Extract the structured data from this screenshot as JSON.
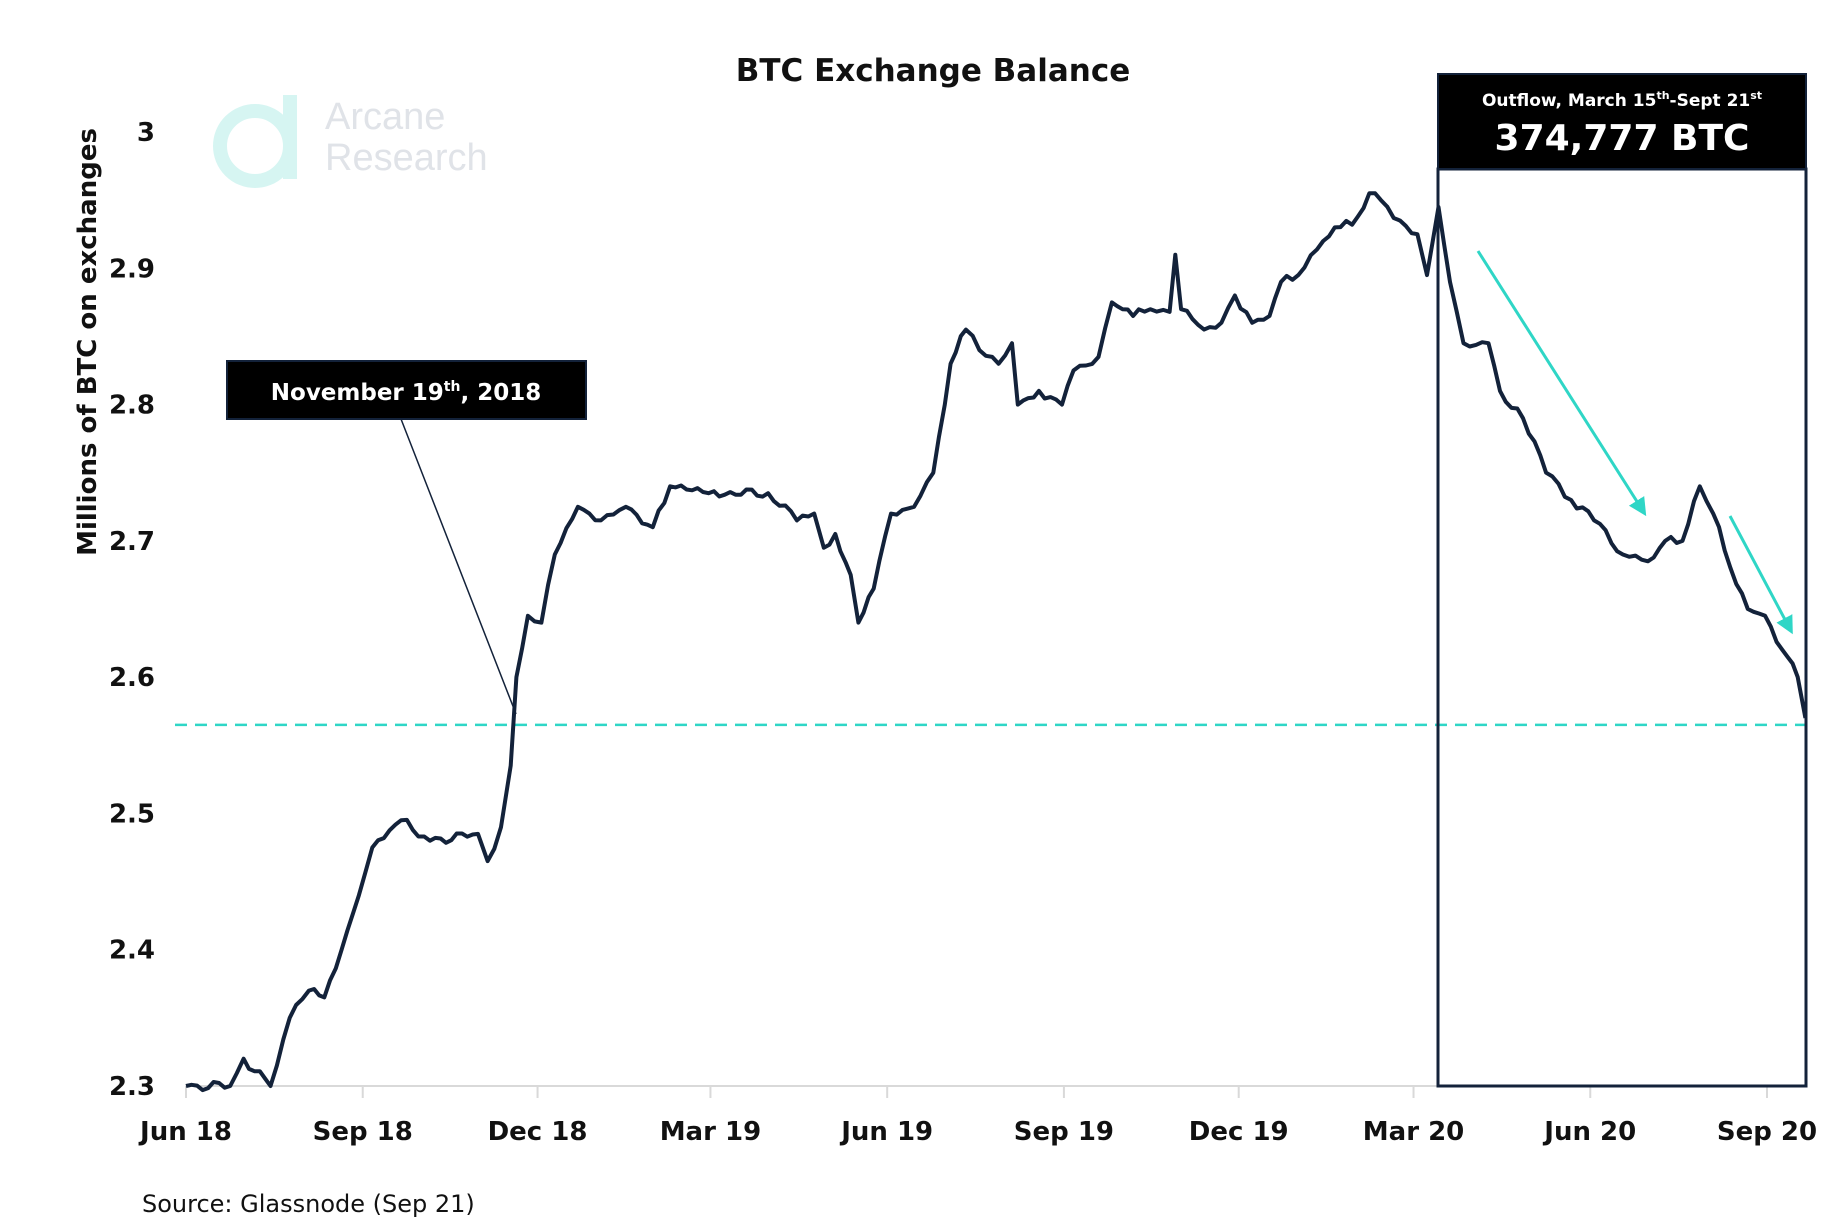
{
  "logo": {
    "text_line1": "Arcane",
    "text_line2": "Research"
  },
  "source": "Source: Glassnode (Sep 21)",
  "annotations": {
    "november": {
      "label": "November 19",
      "sup": "th",
      "suffix": ", 2018",
      "date": "2018-11-19",
      "level": 2.565
    },
    "outflow": {
      "line1_a": "Outflow, March 15",
      "line1_sup1": "th",
      "line1_b": "-Sept 21",
      "line1_sup2": "st",
      "value": "374,777 BTC",
      "start": "2020-03-14",
      "end": "2020-09-21"
    }
  },
  "colors": {
    "line": "#13223a",
    "accent": "#2fd6c6",
    "box": "#000000",
    "axis": "#d9d9d9"
  },
  "chart_data": {
    "type": "line",
    "title": "BTC Exchange Balance",
    "xlabel": "",
    "ylabel": "Millions of BTC on exchanges",
    "ylim": [
      2.3,
      3.0
    ],
    "xlim": [
      "2018-06-01",
      "2020-09-21"
    ],
    "grid": false,
    "yticks": [
      "2.3",
      "2.4",
      "2.5",
      "2.6",
      "2.7",
      "2.8",
      "2.9",
      "3"
    ],
    "xticks": [
      {
        "label": "Jun 18",
        "date": "2018-06-01"
      },
      {
        "label": "Sep 18",
        "date": "2018-09-01"
      },
      {
        "label": "Dec 18",
        "date": "2018-12-01"
      },
      {
        "label": "Mar 19",
        "date": "2019-03-01"
      },
      {
        "label": "Jun 19",
        "date": "2019-06-01"
      },
      {
        "label": "Sep 19",
        "date": "2019-09-01"
      },
      {
        "label": "Dec 19",
        "date": "2019-12-01"
      },
      {
        "label": "Mar 20",
        "date": "2020-03-01"
      },
      {
        "label": "Jun 20",
        "date": "2020-06-01"
      },
      {
        "label": "Sep 20",
        "date": "2020-09-01"
      }
    ],
    "series": [
      {
        "points": [
          [
            "2018-06-01",
            2.3
          ],
          [
            "2018-06-24",
            2.3
          ],
          [
            "2018-07-01",
            2.32
          ],
          [
            "2018-07-15",
            2.3
          ],
          [
            "2018-07-25",
            2.35
          ],
          [
            "2018-08-04",
            2.37
          ],
          [
            "2018-08-12",
            2.365
          ],
          [
            "2018-08-21",
            2.4
          ],
          [
            "2018-08-30",
            2.44
          ],
          [
            "2018-09-06",
            2.475
          ],
          [
            "2018-09-21",
            2.495
          ],
          [
            "2018-10-06",
            2.48
          ],
          [
            "2018-10-31",
            2.485
          ],
          [
            "2018-11-05",
            2.465
          ],
          [
            "2018-11-12",
            2.49
          ],
          [
            "2018-11-17",
            2.535
          ],
          [
            "2018-11-20",
            2.6
          ],
          [
            "2018-11-26",
            2.645
          ],
          [
            "2018-12-03",
            2.64
          ],
          [
            "2018-12-10",
            2.69
          ],
          [
            "2018-12-22",
            2.725
          ],
          [
            "2019-01-03",
            2.715
          ],
          [
            "2019-01-16",
            2.725
          ],
          [
            "2019-01-30",
            2.71
          ],
          [
            "2019-02-08",
            2.74
          ],
          [
            "2019-02-28",
            2.735
          ],
          [
            "2019-03-31",
            2.735
          ],
          [
            "2019-04-15",
            2.715
          ],
          [
            "2019-04-24",
            2.72
          ],
          [
            "2019-04-29",
            2.695
          ],
          [
            "2019-05-05",
            2.705
          ],
          [
            "2019-05-13",
            2.675
          ],
          [
            "2019-05-17",
            2.64
          ],
          [
            "2019-05-25",
            2.665
          ],
          [
            "2019-06-03",
            2.72
          ],
          [
            "2019-06-15",
            2.725
          ],
          [
            "2019-06-25",
            2.75
          ],
          [
            "2019-07-01",
            2.8
          ],
          [
            "2019-07-04",
            2.83
          ],
          [
            "2019-07-12",
            2.855
          ],
          [
            "2019-07-19",
            2.84
          ],
          [
            "2019-07-29",
            2.83
          ],
          [
            "2019-08-05",
            2.845
          ],
          [
            "2019-08-08",
            2.8
          ],
          [
            "2019-08-19",
            2.81
          ],
          [
            "2019-08-31",
            2.8
          ],
          [
            "2019-09-06",
            2.825
          ],
          [
            "2019-09-19",
            2.835
          ],
          [
            "2019-09-26",
            2.875
          ],
          [
            "2019-10-07",
            2.865
          ],
          [
            "2019-10-16",
            2.87
          ],
          [
            "2019-10-26",
            2.868
          ],
          [
            "2019-10-29",
            2.91
          ],
          [
            "2019-11-01",
            2.87
          ],
          [
            "2019-11-13",
            2.855
          ],
          [
            "2019-11-22",
            2.86
          ],
          [
            "2019-11-29",
            2.88
          ],
          [
            "2019-12-08",
            2.86
          ],
          [
            "2019-12-17",
            2.865
          ],
          [
            "2019-12-23",
            2.89
          ],
          [
            "2020-01-01",
            2.895
          ],
          [
            "2020-01-14",
            2.92
          ],
          [
            "2020-01-20",
            2.93
          ],
          [
            "2020-01-29",
            2.932
          ],
          [
            "2020-02-07",
            2.955
          ],
          [
            "2020-02-13",
            2.95
          ],
          [
            "2020-02-23",
            2.935
          ],
          [
            "2020-03-03",
            2.925
          ],
          [
            "2020-03-08",
            2.895
          ],
          [
            "2020-03-14",
            2.945
          ],
          [
            "2020-03-20",
            2.89
          ],
          [
            "2020-03-27",
            2.845
          ],
          [
            "2020-04-09",
            2.845
          ],
          [
            "2020-04-15",
            2.81
          ],
          [
            "2020-04-27",
            2.79
          ],
          [
            "2020-05-09",
            2.75
          ],
          [
            "2020-05-22",
            2.73
          ],
          [
            "2020-06-03",
            2.715
          ],
          [
            "2020-06-18",
            2.69
          ],
          [
            "2020-07-01",
            2.685
          ],
          [
            "2020-07-10",
            2.7
          ],
          [
            "2020-07-19",
            2.7
          ],
          [
            "2020-07-28",
            2.74
          ],
          [
            "2020-08-04",
            2.72
          ],
          [
            "2020-08-13",
            2.68
          ],
          [
            "2020-08-22",
            2.65
          ],
          [
            "2020-08-31",
            2.645
          ],
          [
            "2020-09-09",
            2.62
          ],
          [
            "2020-09-17",
            2.6
          ],
          [
            "2020-09-21",
            2.57
          ]
        ]
      }
    ]
  }
}
